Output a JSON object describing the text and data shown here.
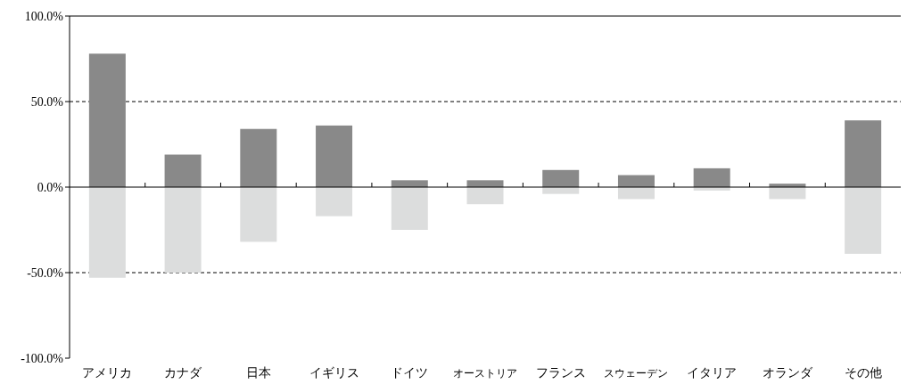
{
  "chart_data": {
    "type": "bar",
    "stacked": true,
    "categories": [
      "アメリカ",
      "カナダ",
      "日本",
      "イギリス",
      "ドイツ",
      "オーストリア",
      "フランス",
      "スウェーデン",
      "イタリア",
      "オランダ",
      "その他"
    ],
    "series": [
      {
        "color": "#898989",
        "values": [
          78,
          19,
          34,
          36,
          4,
          4,
          10,
          7,
          11,
          2,
          39
        ]
      },
      {
        "color": "#dcdddd",
        "values": [
          -53,
          -50,
          -32,
          -17,
          -25,
          -10,
          -4,
          -7,
          -2,
          -7,
          -39
        ]
      }
    ],
    "ylim": [
      -100,
      100
    ],
    "yticks": [
      {
        "value": -100,
        "label": "-100.0%"
      },
      {
        "value": -50,
        "label": "-50.0%"
      },
      {
        "value": 0,
        "label": "0.0%"
      },
      {
        "value": 50,
        "label": "50.0%"
      },
      {
        "value": 100,
        "label": "100.0%"
      }
    ],
    "grid": false,
    "ref_lines": [
      {
        "axis": "y",
        "value": 50,
        "line_style": "dashed",
        "color": "#000000"
      },
      {
        "axis": "y",
        "value": -50,
        "line_style": "dashed",
        "color": "#000000"
      }
    ]
  }
}
